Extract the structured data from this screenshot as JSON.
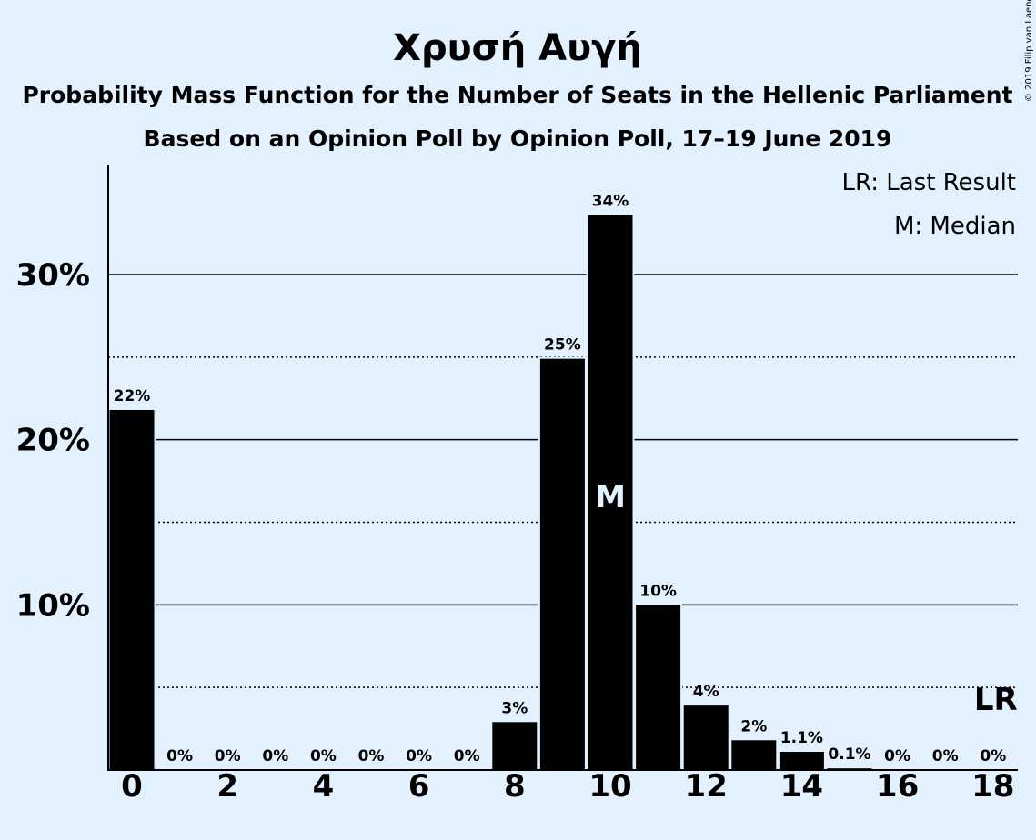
{
  "chart_data": {
    "type": "bar",
    "title": "Χρυσή Αυγή",
    "subtitle1": "Probability Mass Function for the Number of Seats in the Hellenic Parliament",
    "subtitle2": "Based on an Opinion Poll by Opinion Poll, 17–19 June 2019",
    "copyright": "© 2019 Filip van Laenen",
    "categories": [
      0,
      1,
      2,
      3,
      4,
      5,
      6,
      7,
      8,
      9,
      10,
      11,
      12,
      13,
      14,
      15,
      16,
      17,
      18
    ],
    "values": [
      21.8,
      0,
      0,
      0,
      0,
      0,
      0,
      0,
      2.9,
      24.9,
      33.6,
      10.0,
      3.9,
      1.8,
      1.1,
      0.1,
      0,
      0,
      0
    ],
    "value_labels": [
      "22%",
      "0%",
      "0%",
      "0%",
      "0%",
      "0%",
      "0%",
      "0%",
      "3%",
      "25%",
      "34%",
      "10%",
      "4%",
      "2%",
      "1.1%",
      "0.1%",
      "0%",
      "0%",
      "0%"
    ],
    "x_tick_labels": [
      "0",
      "2",
      "4",
      "6",
      "8",
      "10",
      "12",
      "14",
      "16",
      "18"
    ],
    "y_tick_labels": [
      "10%",
      "20%",
      "30%"
    ],
    "y_ticks": [
      10,
      20,
      30
    ],
    "y_minor_ticks": [
      5,
      15,
      25
    ],
    "ylim": [
      0,
      36.5
    ],
    "median_seat": 10,
    "median_marker": "M",
    "last_result_seat": 18,
    "last_result_marker": "LR",
    "legend": [
      "LR: Last Result",
      "M: Median"
    ],
    "legend_position": "top-right",
    "bar_color": "#000000",
    "background_color": "#e3f0fd"
  }
}
